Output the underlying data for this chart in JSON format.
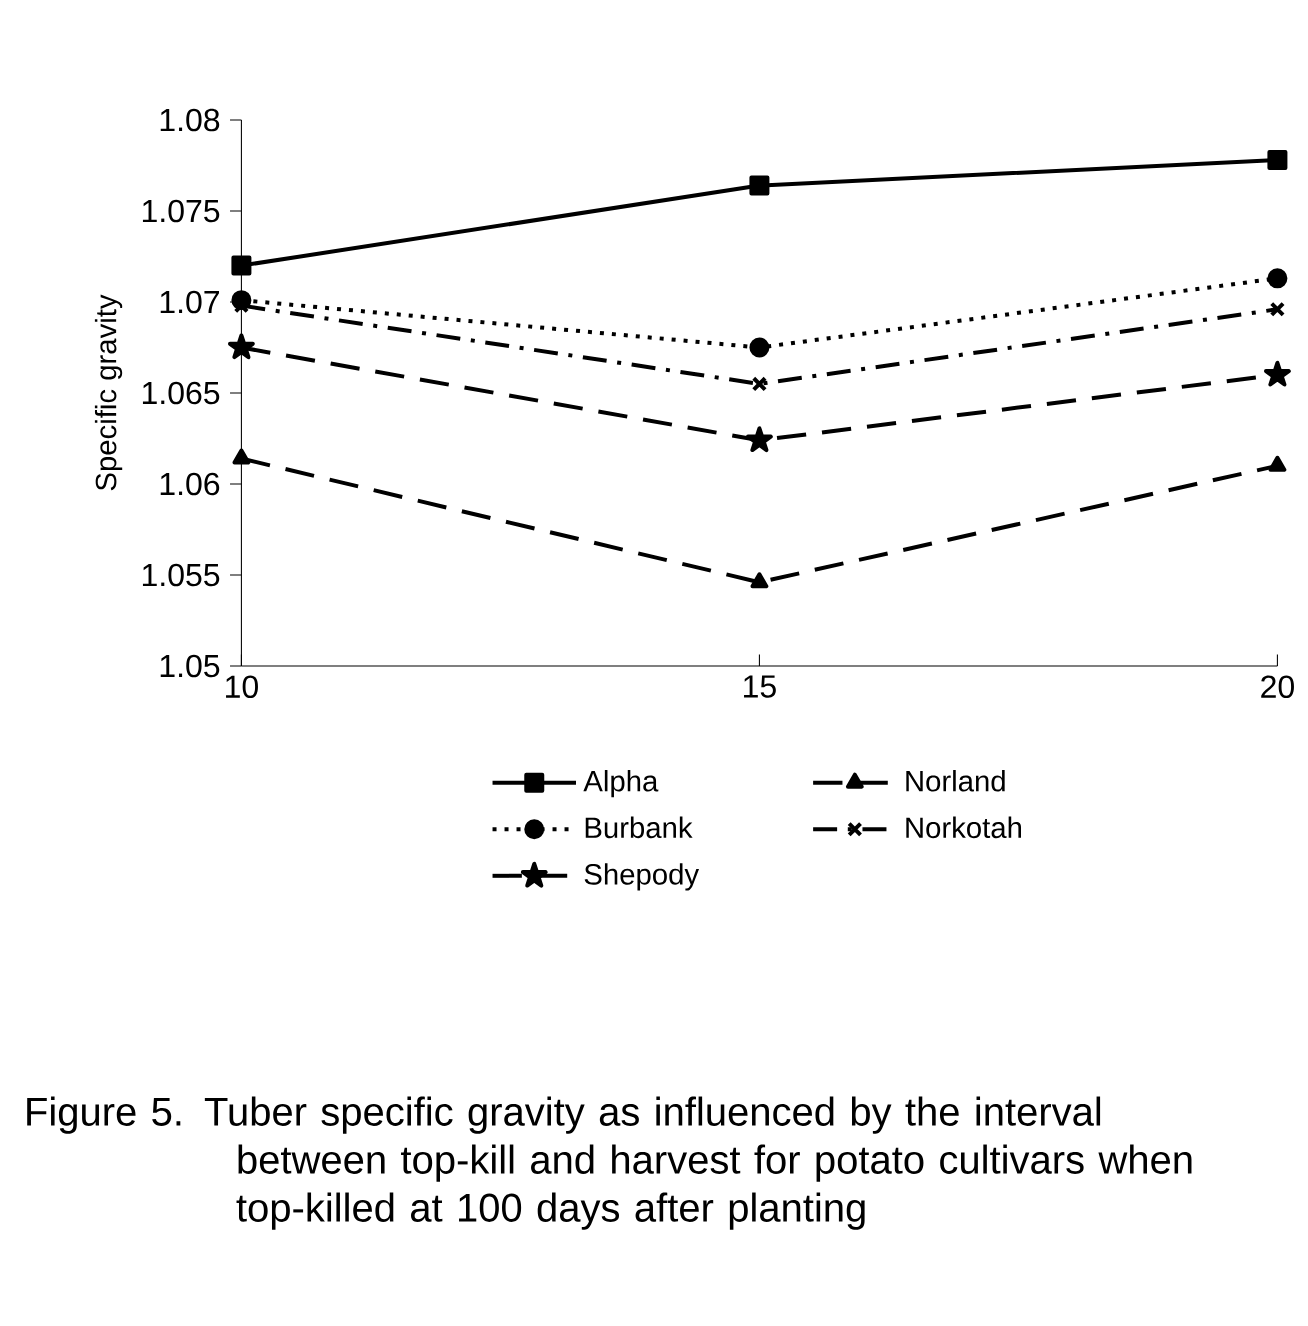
{
  "chart_data": {
    "type": "line",
    "ylabel": "Specific gravity",
    "x": [
      10,
      15,
      20
    ],
    "xlim": [
      10,
      20
    ],
    "xticks": [
      10,
      15,
      20
    ],
    "ylim": [
      1.05,
      1.08
    ],
    "yticks": [
      1.05,
      1.055,
      1.06,
      1.065,
      1.07,
      1.075,
      1.08
    ],
    "legend": "bottom",
    "series": [
      {
        "name": "Alpha",
        "color": "#000000",
        "marker": "square",
        "line_style": "solid",
        "values": [
          1.072,
          1.0764,
          1.0778
        ]
      },
      {
        "name": "Norland",
        "color": "#000000",
        "marker": "triangle",
        "line_style": "dashed",
        "values": [
          1.0614,
          1.0546,
          1.061
        ]
      },
      {
        "name": "Burbank",
        "color": "#000000",
        "marker": "circle",
        "line_style": "dotted",
        "values": [
          1.0701,
          1.0675,
          1.0713
        ]
      },
      {
        "name": "Norkotah",
        "color": "#000000",
        "marker": "cross",
        "line_style": "dashdot",
        "values": [
          1.0698,
          1.0655,
          1.0696
        ]
      },
      {
        "name": "Shepody",
        "color": "#000000",
        "marker": "star",
        "line_style": "dashed",
        "values": [
          1.0675,
          1.0624,
          1.066
        ]
      }
    ],
    "annotations": [
      "Figure 5.  Tuber specific gravity as influenced by the interval between top-kill and harvest for potato cultivars when top-killed at 100 days after planting"
    ]
  }
}
